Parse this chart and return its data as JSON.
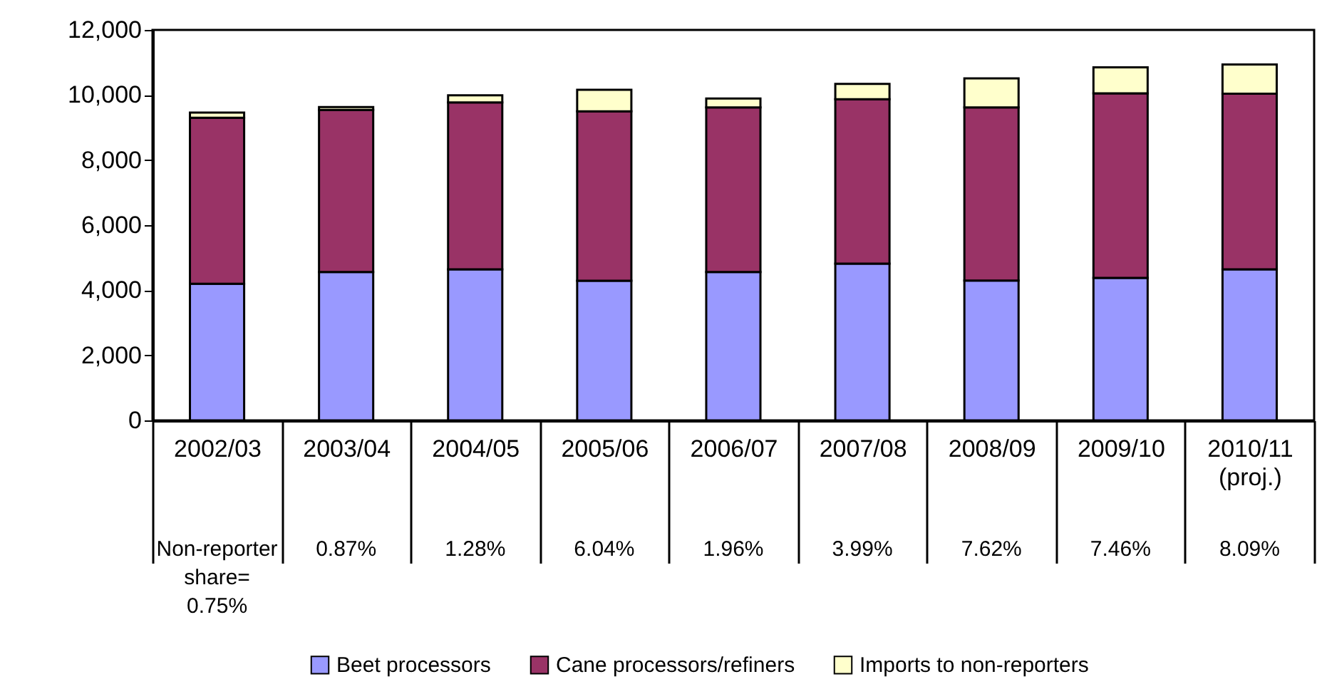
{
  "chart_data": {
    "type": "bar",
    "stacked": true,
    "categories": [
      "2002/03",
      "2003/04",
      "2004/05",
      "2005/06",
      "2006/07",
      "2007/08",
      "2008/09",
      "2009/10",
      "2010/11 (proj.)"
    ],
    "series": [
      {
        "name": "Beet processors",
        "color": "#9999ff",
        "values": [
          4200,
          4560,
          4640,
          4290,
          4560,
          4820,
          4300,
          4380,
          4640
        ]
      },
      {
        "name": "Cane processors/refiners",
        "color": "#993366",
        "values": [
          5100,
          4980,
          5130,
          5210,
          5060,
          5050,
          5320,
          5670,
          5400
        ]
      },
      {
        "name": "Imports to non-reporters",
        "color": "#ffffcc",
        "values": [
          160,
          90,
          220,
          660,
          270,
          470,
          890,
          800,
          900
        ]
      }
    ],
    "ylim": [
      0,
      12000
    ],
    "yticks": [
      0,
      {
        "value": 2000,
        "label": "2,000"
      },
      {
        "value": 4000,
        "label": "4,000"
      },
      {
        "value": 6000,
        "label": "6,000"
      },
      {
        "value": 8000,
        "label": "8,000"
      },
      {
        "value": 10000,
        "label": "10,000"
      },
      {
        "value": 12000,
        "label": "12,000"
      }
    ],
    "grid": false,
    "legend": "bottom",
    "annotations": [
      "Non-reporter share= 0.75%",
      "0.87%",
      "1.28%",
      "6.04%",
      "1.96%",
      "3.99%",
      "7.62%",
      "7.46%",
      "8.09%"
    ]
  }
}
